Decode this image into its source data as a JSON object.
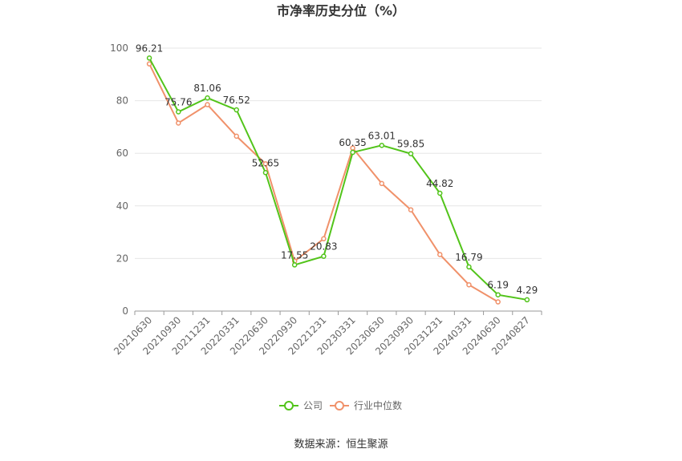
{
  "chart_data": {
    "type": "line",
    "title": "市净率历史分位（%）",
    "xlabel": "",
    "ylabel": "",
    "ylim": [
      0,
      100
    ],
    "yticks": [
      0,
      20,
      40,
      60,
      80,
      100
    ],
    "grid": true,
    "legend_position": "bottom",
    "categories": [
      "20210630",
      "20210930",
      "20211231",
      "20220331",
      "20220630",
      "20220930",
      "20221231",
      "20230331",
      "20230630",
      "20230930",
      "20231231",
      "20240331",
      "20240630",
      "20240827"
    ],
    "series": [
      {
        "name": "公司",
        "color": "#52c41a",
        "values": [
          96.21,
          75.76,
          81.06,
          76.52,
          52.65,
          17.55,
          20.83,
          60.35,
          63.01,
          59.85,
          44.82,
          16.79,
          6.19,
          4.29
        ],
        "labels": [
          "96.21",
          "75.76",
          "81.06",
          "76.52",
          "52.65",
          "17.55",
          "20.83",
          "60.35",
          "63.01",
          "59.85",
          "44.82",
          "16.79",
          "6.19",
          "4.29"
        ]
      },
      {
        "name": "行业中位数",
        "color": "#f0916a",
        "values": [
          94,
          71.5,
          78.5,
          66.5,
          56,
          19,
          27.5,
          62,
          48.5,
          38.5,
          21.5,
          10,
          3.5,
          null
        ]
      }
    ]
  },
  "source": "数据来源：恒生聚源"
}
